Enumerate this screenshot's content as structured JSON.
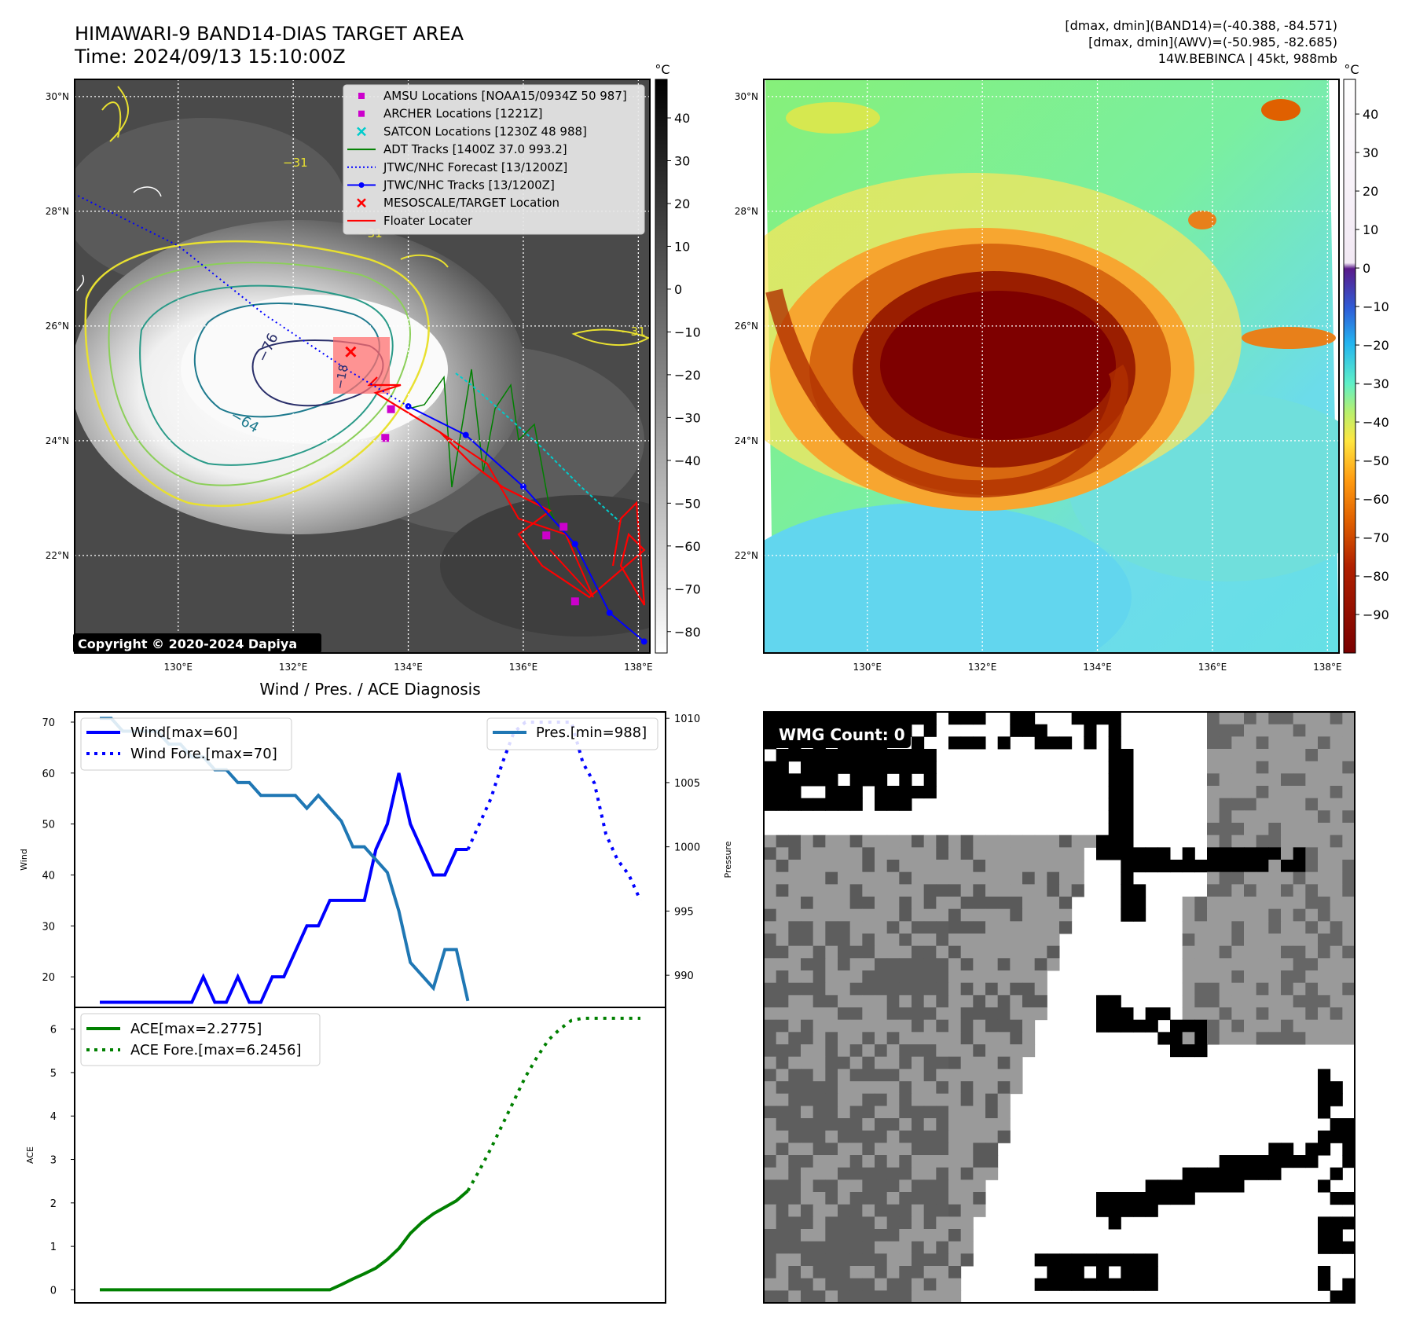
{
  "header": {
    "title_line1": "HIMAWARI-9 BAND14-DIAS TARGET AREA",
    "title_line2": "Time: 2024/09/13 15:10:00Z",
    "info_line1": "[dmax, dmin](BAND14)=(-40.388, -84.571)",
    "info_line2": "[dmax, dmin](AWV)=(-50.985, -82.685)",
    "info_line3": "14W.BEBINCA | 45kt, 988mb"
  },
  "map_axes": {
    "lat_labels": [
      "30°N",
      "28°N",
      "26°N",
      "24°N",
      "22°N"
    ],
    "lat_values": [
      30,
      28,
      26,
      24,
      22
    ],
    "lon_labels": [
      "130°E",
      "132°E",
      "134°E",
      "136°E",
      "138°E"
    ],
    "lon_values": [
      130,
      132,
      134,
      136,
      138
    ],
    "lon_range": [
      128.2,
      138.2
    ],
    "lat_range": [
      20.3,
      30.3
    ]
  },
  "band14_panel": {
    "copyright": "Copyright © 2020-2024 Dapiya",
    "colorbar_unit": "°C",
    "colorbar_ticks": [
      "40",
      "30",
      "20",
      "10",
      "0",
      "−10",
      "−20",
      "−30",
      "−40",
      "−50",
      "−60",
      "−70",
      "−80"
    ],
    "colorbar_tick_values": [
      40,
      30,
      20,
      10,
      0,
      -10,
      -20,
      -30,
      -40,
      -50,
      -60,
      -70,
      -80
    ],
    "colorbar_range": [
      -85,
      49
    ],
    "contour_labels": [
      "−76",
      "−64",
      "−31",
      "−31",
      "−31",
      "−18"
    ],
    "legend": [
      {
        "label": "AMSU Locations [NOAA15/0934Z 50 987]",
        "marker": "square",
        "color": "#cc00cc"
      },
      {
        "label": "ARCHER Locations [1221Z]",
        "marker": "square",
        "color": "#cc00cc"
      },
      {
        "label": "SATCON Locations [1230Z 48 988]",
        "marker": "x",
        "color": "#00cccc"
      },
      {
        "label": "ADT Tracks [1400Z 37.0 993.2]",
        "marker": "line",
        "color": "#008000"
      },
      {
        "label": "JTWC/NHC Forecast [13/1200Z]",
        "marker": "dotted",
        "color": "#0000ff"
      },
      {
        "label": "JTWC/NHC Tracks [13/1200Z]",
        "marker": "line-dot",
        "color": "#0000ff"
      },
      {
        "label": "MESOSCALE/TARGET Location",
        "marker": "x",
        "color": "#ff0000"
      },
      {
        "label": "Floater Locater",
        "marker": "line",
        "color": "#ff0000"
      }
    ],
    "jtwc_track": [
      [
        138.1,
        20.5
      ],
      [
        137.5,
        21.0
      ],
      [
        136.9,
        22.2
      ],
      [
        136.0,
        23.2
      ],
      [
        135.0,
        24.1
      ],
      [
        134.0,
        24.6
      ]
    ],
    "jtwc_forecast": [
      [
        134.0,
        24.6
      ],
      [
        133.0,
        25.2
      ],
      [
        131.5,
        26.2
      ],
      [
        130.0,
        27.4
      ],
      [
        128.2,
        28.3
      ]
    ],
    "amsu_points": [
      [
        133.7,
        24.55
      ],
      [
        133.6,
        24.05
      ],
      [
        136.4,
        22.35
      ],
      [
        136.9,
        21.2
      ],
      [
        136.7,
        22.5
      ]
    ],
    "target_x": [
      [
        133.0,
        25.55
      ]
    ]
  },
  "awv_panel": {
    "colorbar_unit": "°C",
    "colorbar_ticks": [
      "40",
      "30",
      "20",
      "10",
      "0",
      "−10",
      "−20",
      "−30",
      "−40",
      "−50",
      "−60",
      "−70",
      "−80",
      "−90"
    ],
    "colorbar_tick_values": [
      40,
      30,
      20,
      10,
      0,
      -10,
      -20,
      -30,
      -40,
      -50,
      -60,
      -70,
      -80,
      -90
    ],
    "colorbar_range": [
      -100,
      49
    ]
  },
  "diagnosis": {
    "title": "Wind / Pres. / ACE Diagnosis",
    "wind_ylabel": "Wind",
    "pres_ylabel": "Pressure",
    "ace_ylabel": "ACE",
    "wind_legend": [
      "Wind[max=60]",
      "Wind Fore.[max=70]"
    ],
    "pres_legend": "Pres.[min=988]",
    "ace_legend": [
      "ACE[max=2.2775]",
      "ACE Fore.[max=6.2456]"
    ],
    "wind_ticks": [
      20,
      30,
      40,
      50,
      60,
      70
    ],
    "pres_ticks": [
      990,
      995,
      1000,
      1005,
      1010
    ],
    "ace_ticks": [
      0,
      1,
      2,
      3,
      4,
      5,
      6
    ]
  },
  "wmg_panel": {
    "label": "WMG Count: 0"
  },
  "chart_data": [
    {
      "type": "line",
      "title": "Wind / Pres. / ACE Diagnosis",
      "ylabel": "Wind",
      "ylim": [
        14,
        72
      ],
      "x": [
        0,
        1,
        2,
        3,
        4,
        5,
        6,
        7,
        8,
        9,
        10,
        11,
        12,
        13,
        14,
        15,
        16,
        17,
        18,
        19,
        20,
        21,
        22,
        23,
        24,
        25,
        26,
        27,
        28,
        29,
        30,
        31,
        32
      ],
      "series": [
        {
          "name": "Wind[max=60]",
          "color": "#0000ff",
          "style": "solid",
          "x": [
            0,
            1,
            2,
            3,
            4,
            5,
            6,
            7,
            8,
            9,
            10,
            11,
            12,
            13,
            14,
            15,
            16,
            17,
            18,
            19,
            20,
            21,
            22,
            23,
            24,
            25,
            26,
            27,
            28,
            29,
            30,
            31,
            32
          ],
          "values": [
            15,
            15,
            15,
            15,
            15,
            15,
            15,
            15,
            15,
            20,
            15,
            15,
            20,
            15,
            15,
            20,
            20,
            25,
            30,
            30,
            35,
            35,
            35,
            35,
            45,
            50,
            60,
            50,
            45,
            40,
            40,
            45,
            45
          ]
        },
        {
          "name": "Wind Fore.[max=70]",
          "color": "#0000ff",
          "style": "dotted",
          "x": [
            32,
            33,
            34,
            35,
            36,
            37,
            38,
            39,
            40,
            41,
            42,
            43,
            44,
            45,
            46,
            47
          ],
          "values": [
            45,
            50,
            55,
            62,
            68,
            70,
            70,
            70,
            70,
            70,
            62,
            58,
            48,
            43,
            40,
            35
          ]
        }
      ]
    },
    {
      "type": "line",
      "ylabel": "Pressure",
      "ylim": [
        987.5,
        1010.5
      ],
      "series": [
        {
          "name": "Pres.[min=988]",
          "color": "#1f77b4",
          "style": "solid",
          "x": [
            0,
            1,
            2,
            3,
            4,
            5,
            6,
            7,
            8,
            9,
            10,
            11,
            12,
            13,
            14,
            15,
            16,
            17,
            18,
            19,
            20,
            21,
            22,
            23,
            24,
            25,
            26,
            27,
            28,
            29,
            30,
            31,
            32
          ],
          "values": [
            1010,
            1010,
            1009,
            1009,
            1009,
            1009,
            1008,
            1008,
            1007,
            1007,
            1006,
            1006,
            1005,
            1005,
            1004,
            1004,
            1004,
            1004,
            1003,
            1004,
            1003,
            1002,
            1000,
            1000,
            999,
            998,
            995,
            991,
            990,
            989,
            992,
            992,
            988
          ]
        }
      ]
    },
    {
      "type": "line",
      "ylabel": "ACE",
      "ylim": [
        -0.3,
        6.5
      ],
      "series": [
        {
          "name": "ACE[max=2.2775]",
          "color": "#008000",
          "style": "solid",
          "x": [
            0,
            1,
            2,
            3,
            4,
            5,
            6,
            7,
            8,
            9,
            10,
            11,
            12,
            13,
            14,
            15,
            16,
            17,
            18,
            19,
            20,
            21,
            22,
            23,
            24,
            25,
            26,
            27,
            28,
            29,
            30,
            31,
            32
          ],
          "values": [
            0,
            0,
            0,
            0,
            0,
            0,
            0,
            0,
            0,
            0,
            0,
            0,
            0,
            0,
            0,
            0,
            0,
            0,
            0,
            0,
            0,
            0.12,
            0.25,
            0.37,
            0.5,
            0.7,
            0.95,
            1.3,
            1.55,
            1.75,
            1.9,
            2.05,
            2.28
          ]
        },
        {
          "name": "ACE Fore.[max=6.2456]",
          "color": "#008000",
          "style": "dotted",
          "x": [
            32,
            33,
            34,
            35,
            36,
            37,
            38,
            39,
            40,
            41,
            42,
            43,
            44,
            45,
            46,
            47
          ],
          "values": [
            2.28,
            2.75,
            3.25,
            3.8,
            4.35,
            4.9,
            5.35,
            5.75,
            6.0,
            6.2,
            6.25,
            6.25,
            6.25,
            6.25,
            6.25,
            6.25
          ]
        }
      ]
    }
  ]
}
